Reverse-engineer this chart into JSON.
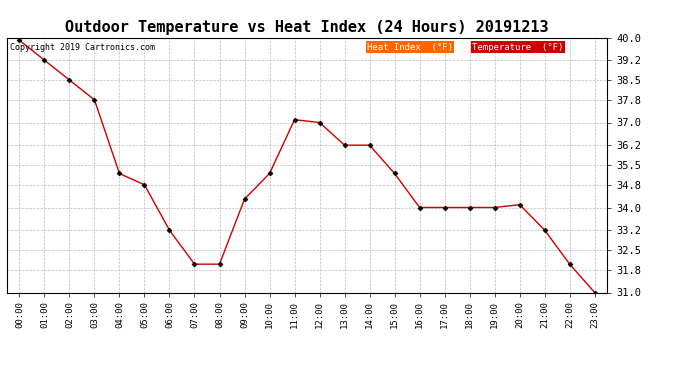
{
  "title": "Outdoor Temperature vs Heat Index (24 Hours) 20191213",
  "copyright_text": "Copyright 2019 Cartronics.com",
  "x_labels": [
    "00:00",
    "01:00",
    "02:00",
    "03:00",
    "04:00",
    "05:00",
    "06:00",
    "07:00",
    "08:00",
    "09:00",
    "10:00",
    "11:00",
    "12:00",
    "13:00",
    "14:00",
    "15:00",
    "16:00",
    "17:00",
    "18:00",
    "19:00",
    "20:00",
    "21:00",
    "22:00",
    "23:00"
  ],
  "temperature_values": [
    39.9,
    39.2,
    38.5,
    37.8,
    35.2,
    34.8,
    33.2,
    32.0,
    32.0,
    34.3,
    35.2,
    37.1,
    37.0,
    36.2,
    36.2,
    35.2,
    34.0,
    34.0,
    34.0,
    34.0,
    34.1,
    33.2,
    32.0,
    31.0
  ],
  "temp_color": "#CC0000",
  "heat_index_color": "#FF6600",
  "ylim_min": 31.0,
  "ylim_max": 40.0,
  "yticks": [
    31.0,
    31.8,
    32.5,
    33.2,
    34.0,
    34.8,
    35.5,
    36.2,
    37.0,
    37.8,
    38.5,
    39.2,
    40.0
  ],
  "background_color": "#ffffff",
  "grid_color": "#bbbbbb",
  "title_fontsize": 11,
  "legend_heat_index_bg": "#FF6600",
  "legend_temp_bg": "#CC0000",
  "legend_text_color": "#ffffff"
}
